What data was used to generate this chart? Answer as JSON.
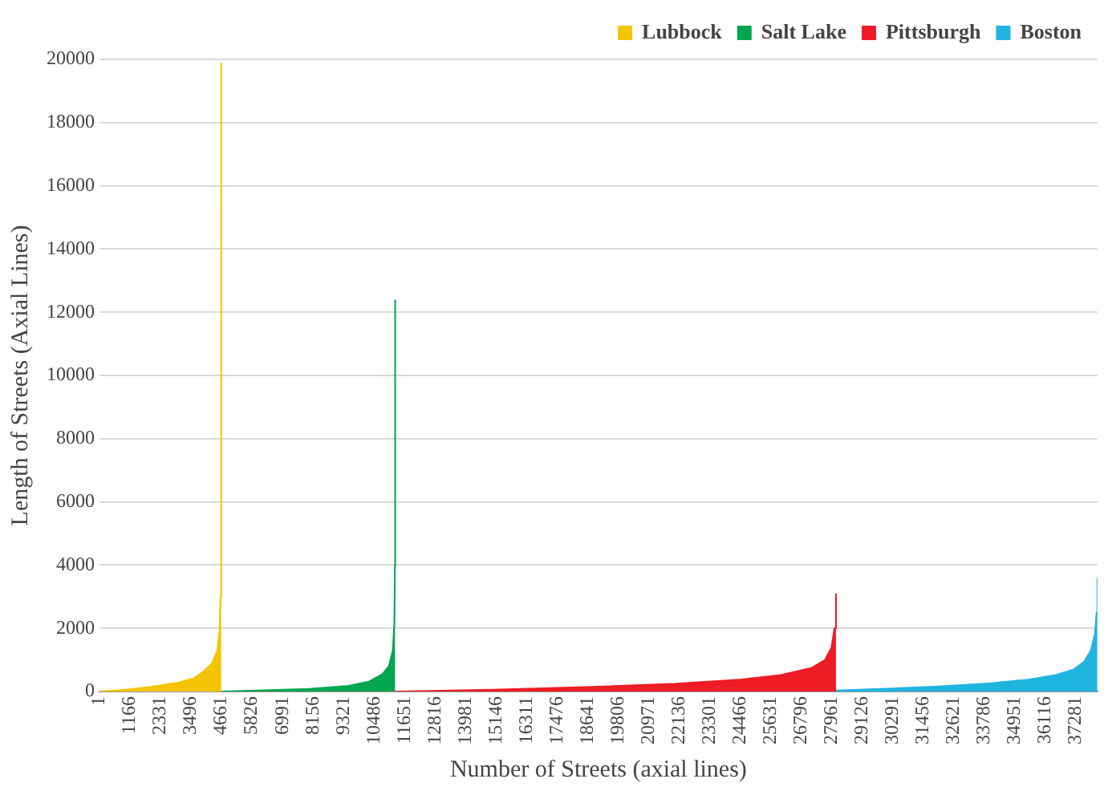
{
  "chart_data": {
    "type": "area",
    "xlabel": "Number of Streets (axial lines)",
    "ylabel": "Length of Streets (Axial Lines)",
    "xlim": [
      1,
      38100
    ],
    "xticks": [
      1,
      1166,
      2331,
      3496,
      4661,
      5826,
      6991,
      8156,
      9321,
      10486,
      11651,
      12816,
      13981,
      15146,
      16311,
      17476,
      18641,
      19806,
      20971,
      22136,
      23301,
      24466,
      25631,
      26796,
      27961,
      29126,
      30291,
      31456,
      32621,
      33786,
      34951,
      36116,
      37281
    ],
    "ylim": [
      0,
      20000
    ],
    "yticks": [
      0,
      2000,
      4000,
      6000,
      8000,
      10000,
      12000,
      14000,
      16000,
      18000,
      20000
    ],
    "grid": "y",
    "legend": "top right",
    "series": [
      {
        "name": "Lubbock",
        "color": "#f5c400",
        "x": [
          1,
          1000,
          2000,
          3000,
          3600,
          4000,
          4300,
          4500,
          4580,
          4620,
          4650
        ],
        "values": [
          0,
          60,
          150,
          280,
          420,
          650,
          900,
          1300,
          1900,
          3000,
          19900
        ]
      },
      {
        "name": "Salt Lake",
        "color": "#00a650",
        "x": [
          4651,
          6000,
          8000,
          9500,
          10300,
          10800,
          11050,
          11200,
          11260,
          11280,
          11290
        ],
        "values": [
          0,
          30,
          80,
          180,
          320,
          550,
          800,
          1300,
          2200,
          4000,
          12400
        ]
      },
      {
        "name": "Pittsburgh",
        "color": "#ee1c25",
        "x": [
          11291,
          15000,
          19000,
          22000,
          24500,
          26000,
          27200,
          27700,
          27950,
          28060,
          28120
        ],
        "values": [
          0,
          60,
          150,
          250,
          380,
          520,
          750,
          1000,
          1400,
          2000,
          3100
        ]
      },
      {
        "name": "Boston",
        "color": "#1fb5e0",
        "x": [
          28121,
          30000,
          32000,
          34000,
          35500,
          36500,
          37200,
          37600,
          37850,
          38000,
          38070,
          38100
        ],
        "values": [
          30,
          90,
          160,
          260,
          380,
          520,
          700,
          950,
          1300,
          1800,
          2500,
          3600
        ]
      }
    ]
  }
}
